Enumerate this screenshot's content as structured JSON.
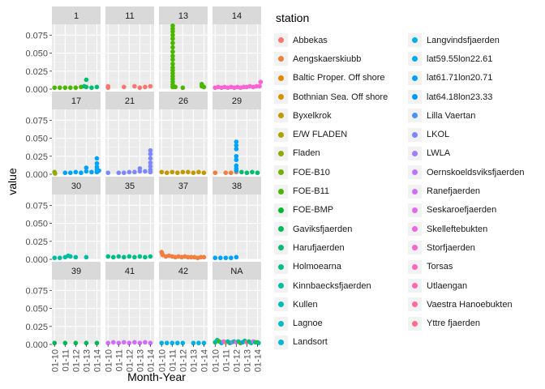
{
  "chart_data": {
    "type": "scatter",
    "xlabel": "Month-Year",
    "ylabel": "value",
    "x_ticks": [
      "01-10",
      "01-11",
      "01-12",
      "01-13",
      "01-14"
    ],
    "y_ticks": [
      "0.000",
      "0.025",
      "0.050",
      "0.075"
    ],
    "ylim": [
      0,
      0.09
    ],
    "facet_layout": "4x4 grid, legend right",
    "legend_title": "station",
    "legend_columns": [
      [
        "Abbekas",
        "Aengskaerskiubb",
        "Baltic Proper. Off shore",
        "Bothnian Sea. Off shore",
        "Byxelkrok",
        "E/W FLADEN",
        "Fladen",
        "FOE-B10",
        "FOE-B11",
        "FOE-BMP",
        "Gaviksfjaerden",
        "Harufjaerden",
        "Holmoearna",
        "Kinnbaecksfjaerden",
        "Kullen",
        "Lagnoe",
        "Landsort"
      ],
      [
        "Langvindsfjaerden",
        "lat59.55lon22.61",
        "lat61.71lon20.71",
        "lat64.18lon23.33",
        "Lilla Vaertan",
        "LKOL",
        "LWLA",
        "Oernskoeldsviksfjaerden",
        "Ranefjaerden",
        "Seskaroefjaerden",
        "Skelleftebukten",
        "Storfjaerden",
        "Torsas",
        "Utlaengan",
        "Vaestra Hanoebukten",
        "Yttre fjaerden"
      ]
    ],
    "legend_colors": [
      [
        "#F8766D",
        "#F07F40",
        "#E48800",
        "#D49100",
        "#C19A00",
        "#ABA300",
        "#92AA00",
        "#72B000",
        "#4BB600",
        "#00B92D",
        "#00BC55",
        "#00BD72",
        "#00BE8A",
        "#00BEA0",
        "#00BDB4",
        "#00BBC6",
        "#00B7D7"
      ],
      [
        "#00B2E5",
        "#00ABF1",
        "#00A3FB",
        "#009AFF",
        "#4990FF",
        "#7C86FF",
        "#A07CFF",
        "#BC74FF",
        "#D26DF9",
        "#E36AEE",
        "#F066E1",
        "#FA64D2",
        "#FE65C1",
        "#FF66B0",
        "#FF699E",
        "#FF6C8B"
      ]
    ],
    "facets": [
      {
        "label": "1",
        "points": [
          [
            0,
            0.002,
            "#4BB600"
          ],
          [
            0.5,
            0.002,
            "#4BB600"
          ],
          [
            1,
            0.002,
            "#4BB600"
          ],
          [
            1.5,
            0.002,
            "#4BB600"
          ],
          [
            2,
            0.002,
            "#4BB600"
          ],
          [
            2.5,
            0.003,
            "#4BB600"
          ],
          [
            2.8,
            0.004,
            "#00BD72"
          ],
          [
            3.0,
            0.013,
            "#00BD72"
          ],
          [
            3.0,
            0.003,
            "#00BD72"
          ],
          [
            3.5,
            0.002,
            "#00BD72"
          ],
          [
            4.0,
            0.003,
            "#00BD72"
          ]
        ]
      },
      {
        "label": "11",
        "points": [
          [
            0,
            0.004,
            "#F8766D"
          ],
          [
            0,
            0.002,
            "#F8766D"
          ],
          [
            1.5,
            0.003,
            "#F8766D"
          ],
          [
            2.5,
            0.004,
            "#F8766D"
          ],
          [
            3.0,
            0.002,
            "#F8766D"
          ],
          [
            3.5,
            0.003,
            "#F8766D"
          ],
          [
            4.0,
            0.004,
            "#F8766D"
          ]
        ]
      },
      {
        "label": "13",
        "points": [
          [
            1.05,
            0.088,
            "#4BB600"
          ],
          [
            1.05,
            0.084,
            "#4BB600"
          ],
          [
            1.05,
            0.08,
            "#4BB600"
          ],
          [
            1.05,
            0.075,
            "#4BB600"
          ],
          [
            1.05,
            0.07,
            "#4BB600"
          ],
          [
            1.05,
            0.064,
            "#4BB600"
          ],
          [
            1.05,
            0.058,
            "#4BB600"
          ],
          [
            1.05,
            0.052,
            "#4BB600"
          ],
          [
            1.05,
            0.046,
            "#4BB600"
          ],
          [
            1.05,
            0.041,
            "#4BB600"
          ],
          [
            1.05,
            0.035,
            "#4BB600"
          ],
          [
            1.05,
            0.03,
            "#4BB600"
          ],
          [
            1.05,
            0.026,
            "#4BB600"
          ],
          [
            1.05,
            0.022,
            "#4BB600"
          ],
          [
            1.05,
            0.018,
            "#4BB600"
          ],
          [
            1.05,
            0.014,
            "#4BB600"
          ],
          [
            1.05,
            0.01,
            "#4BB600"
          ],
          [
            1.05,
            0.006,
            "#4BB600"
          ],
          [
            1.05,
            0.003,
            "#4BB600"
          ],
          [
            1.3,
            0.003,
            "#4BB600"
          ],
          [
            2.0,
            0.002,
            "#4BB600"
          ],
          [
            3.8,
            0.007,
            "#4BB600"
          ],
          [
            3.8,
            0.004,
            "#4BB600"
          ],
          [
            4.0,
            0.003,
            "#4BB600"
          ]
        ]
      },
      {
        "label": "14",
        "points": [
          [
            0,
            0.002,
            "#FA64D2"
          ],
          [
            0.3,
            0.003,
            "#FA64D2"
          ],
          [
            0.6,
            0.002,
            "#FA64D2"
          ],
          [
            0.9,
            0.003,
            "#FA64D2"
          ],
          [
            1.2,
            0.002,
            "#FA64D2"
          ],
          [
            1.5,
            0.003,
            "#FA64D2"
          ],
          [
            1.8,
            0.002,
            "#FA64D2"
          ],
          [
            2.1,
            0.003,
            "#FA64D2"
          ],
          [
            2.4,
            0.002,
            "#FA64D2"
          ],
          [
            2.7,
            0.003,
            "#FA64D2"
          ],
          [
            3.0,
            0.003,
            "#FA64D2"
          ],
          [
            3.3,
            0.004,
            "#FA64D2"
          ],
          [
            3.6,
            0.003,
            "#FA64D2"
          ],
          [
            3.9,
            0.004,
            "#FA64D2"
          ],
          [
            4.2,
            0.004,
            "#FA64D2"
          ],
          [
            4.3,
            0.01,
            "#FA64D2"
          ]
        ]
      },
      {
        "label": "17",
        "points": [
          [
            0,
            0.003,
            "#92AA00"
          ],
          [
            0.05,
            0.001,
            "#92AA00"
          ],
          [
            1.0,
            0.002,
            "#00A3FB"
          ],
          [
            1.5,
            0.002,
            "#00A3FB"
          ],
          [
            2.0,
            0.003,
            "#00A3FB"
          ],
          [
            2.5,
            0.002,
            "#00A3FB"
          ],
          [
            3.0,
            0.004,
            "#00A3FB"
          ],
          [
            3.0,
            0.009,
            "#00A3FB"
          ],
          [
            3.5,
            0.003,
            "#00A3FB"
          ],
          [
            4.0,
            0.022,
            "#00A3FB"
          ],
          [
            4.0,
            0.015,
            "#00A3FB"
          ],
          [
            4.0,
            0.01,
            "#00A3FB"
          ],
          [
            4.0,
            0.006,
            "#00A3FB"
          ],
          [
            4.0,
            0.003,
            "#00A3FB"
          ],
          [
            4.2,
            0.005,
            "#00A3FB"
          ]
        ]
      },
      {
        "label": "21",
        "points": [
          [
            0,
            0.002,
            "#7C86FF"
          ],
          [
            1.0,
            0.002,
            "#7C86FF"
          ],
          [
            1.5,
            0.002,
            "#7C86FF"
          ],
          [
            2.0,
            0.003,
            "#7C86FF"
          ],
          [
            2.5,
            0.003,
            "#7C86FF"
          ],
          [
            3.0,
            0.004,
            "#7C86FF"
          ],
          [
            3.0,
            0.008,
            "#7C86FF"
          ],
          [
            3.5,
            0.004,
            "#7C86FF"
          ],
          [
            4.0,
            0.033,
            "#7C86FF"
          ],
          [
            4.0,
            0.028,
            "#7C86FF"
          ],
          [
            4.0,
            0.022,
            "#7C86FF"
          ],
          [
            4.0,
            0.016,
            "#7C86FF"
          ],
          [
            4.0,
            0.011,
            "#7C86FF"
          ],
          [
            4.0,
            0.006,
            "#7C86FF"
          ],
          [
            4.0,
            0.003,
            "#7C86FF"
          ]
        ]
      },
      {
        "label": "26",
        "points": [
          [
            0,
            0.003,
            "#C19A00"
          ],
          [
            0.5,
            0.002,
            "#C19A00"
          ],
          [
            1.0,
            0.003,
            "#C19A00"
          ],
          [
            1.5,
            0.002,
            "#C19A00"
          ],
          [
            2.0,
            0.003,
            "#C19A00"
          ],
          [
            2.5,
            0.003,
            "#C19A00"
          ],
          [
            3.0,
            0.002,
            "#C19A00"
          ],
          [
            3.5,
            0.003,
            "#C19A00"
          ],
          [
            4.0,
            0.002,
            "#C19A00"
          ]
        ]
      },
      {
        "label": "29",
        "points": [
          [
            0,
            0.002,
            "#F07F40"
          ],
          [
            1.0,
            0.002,
            "#F07F40"
          ],
          [
            1.5,
            0.002,
            "#F07F40"
          ],
          [
            2.0,
            0.003,
            "#F07F40"
          ],
          [
            2.0,
            0.045,
            "#00A3FB"
          ],
          [
            2.0,
            0.04,
            "#00A3FB"
          ],
          [
            2.0,
            0.035,
            "#00A3FB"
          ],
          [
            2.0,
            0.025,
            "#00A3FB"
          ],
          [
            2.0,
            0.02,
            "#00A3FB"
          ],
          [
            2.0,
            0.012,
            "#00A3FB"
          ],
          [
            2.0,
            0.008,
            "#00A3FB"
          ],
          [
            2.0,
            0.005,
            "#00A3FB"
          ],
          [
            2.5,
            0.003,
            "#00BD72"
          ],
          [
            3.0,
            0.002,
            "#00BD72"
          ],
          [
            3.5,
            0.003,
            "#00BD72"
          ],
          [
            4.0,
            0.002,
            "#00BD72"
          ]
        ]
      },
      {
        "label": "30",
        "points": [
          [
            0,
            0.002,
            "#00BEA0"
          ],
          [
            0.5,
            0.002,
            "#00BEA0"
          ],
          [
            1.0,
            0.003,
            "#00BEA0"
          ],
          [
            1.3,
            0.005,
            "#00BEA0"
          ],
          [
            1.5,
            0.004,
            "#00BEA0"
          ],
          [
            2.0,
            0.003,
            "#00BEA0"
          ],
          [
            3.0,
            0.003,
            "#00BEA0"
          ]
        ]
      },
      {
        "label": "35",
        "points": [
          [
            0,
            0.004,
            "#00BE8A"
          ],
          [
            0.5,
            0.003,
            "#00BE8A"
          ],
          [
            1.0,
            0.004,
            "#00BE8A"
          ],
          [
            1.5,
            0.003,
            "#00BE8A"
          ],
          [
            2.0,
            0.004,
            "#00BE8A"
          ],
          [
            2.5,
            0.003,
            "#00BE8A"
          ],
          [
            3.0,
            0.004,
            "#00BE8A"
          ],
          [
            3.5,
            0.003,
            "#00BE8A"
          ],
          [
            4.0,
            0.004,
            "#00BE8A"
          ]
        ]
      },
      {
        "label": "37",
        "points": [
          [
            0,
            0.01,
            "#F07F40"
          ],
          [
            0.05,
            0.008,
            "#F07F40"
          ],
          [
            0.1,
            0.006,
            "#F07F40"
          ],
          [
            0.4,
            0.004,
            "#F07F40"
          ],
          [
            0.7,
            0.005,
            "#F07F40"
          ],
          [
            1.0,
            0.004,
            "#F07F40"
          ],
          [
            1.3,
            0.003,
            "#F07F40"
          ],
          [
            1.6,
            0.004,
            "#F07F40"
          ],
          [
            1.9,
            0.003,
            "#F07F40"
          ],
          [
            2.2,
            0.004,
            "#F07F40"
          ],
          [
            2.5,
            0.003,
            "#F07F40"
          ],
          [
            2.8,
            0.003,
            "#F07F40"
          ],
          [
            3.1,
            0.003,
            "#F07F40"
          ],
          [
            3.4,
            0.002,
            "#F07F40"
          ],
          [
            3.7,
            0.003,
            "#F07F40"
          ],
          [
            4.0,
            0.003,
            "#F07F40"
          ]
        ]
      },
      {
        "label": "38",
        "points": [
          [
            0,
            0.002,
            "#00A3FB"
          ],
          [
            0.5,
            0.002,
            "#00A3FB"
          ],
          [
            1.0,
            0.002,
            "#00A3FB"
          ],
          [
            1.5,
            0.002,
            "#00A3FB"
          ],
          [
            2.0,
            0.003,
            "#00A3FB"
          ]
        ]
      },
      {
        "label": "39",
        "points": [
          [
            0,
            0.002,
            "#00BC55"
          ],
          [
            1.0,
            0.002,
            "#00BC55"
          ],
          [
            2.0,
            0.002,
            "#00BC55"
          ],
          [
            3.0,
            0.002,
            "#00BC55"
          ],
          [
            4.0,
            0.002,
            "#00BC55"
          ]
        ]
      },
      {
        "label": "41",
        "points": [
          [
            0,
            0.002,
            "#D26DF9"
          ],
          [
            0.5,
            0.003,
            "#D26DF9"
          ],
          [
            1.0,
            0.002,
            "#D26DF9"
          ],
          [
            1.5,
            0.003,
            "#D26DF9"
          ],
          [
            2.0,
            0.002,
            "#D26DF9"
          ],
          [
            2.5,
            0.003,
            "#D26DF9"
          ],
          [
            3.0,
            0.002,
            "#D26DF9"
          ],
          [
            3.5,
            0.003,
            "#D26DF9"
          ],
          [
            4.0,
            0.002,
            "#D26DF9"
          ]
        ]
      },
      {
        "label": "42",
        "points": [
          [
            0,
            0.002,
            "#00B2E5"
          ],
          [
            0.5,
            0.002,
            "#00B2E5"
          ],
          [
            1.0,
            0.002,
            "#00B2E5"
          ],
          [
            1.5,
            0.002,
            "#00B2E5"
          ],
          [
            2.0,
            0.002,
            "#00B2E5"
          ],
          [
            3.0,
            0.002,
            "#00B2E5"
          ],
          [
            3.5,
            0.002,
            "#00B2E5"
          ],
          [
            4.0,
            0.002,
            "#00B2E5"
          ]
        ]
      },
      {
        "label": "NA",
        "points": [
          [
            0,
            0.003,
            "#00BE8A"
          ],
          [
            0.2,
            0.006,
            "#00BEA0"
          ],
          [
            0.4,
            0.004,
            "#4BB600"
          ],
          [
            0.6,
            0.002,
            "#00B2E5"
          ],
          [
            0.8,
            0.004,
            "#D26DF9"
          ],
          [
            1.0,
            0.003,
            "#F8766D"
          ],
          [
            1.2,
            0.004,
            "#00BEA0"
          ],
          [
            1.4,
            0.002,
            "#00BD72"
          ],
          [
            1.6,
            0.003,
            "#7C86FF"
          ],
          [
            1.8,
            0.004,
            "#00BE8A"
          ],
          [
            2.0,
            0.003,
            "#F066E1"
          ],
          [
            2.2,
            0.004,
            "#00BEA0"
          ],
          [
            2.4,
            0.002,
            "#4BB600"
          ],
          [
            2.6,
            0.003,
            "#00A3FB"
          ],
          [
            2.8,
            0.005,
            "#00BE8A"
          ],
          [
            3.0,
            0.003,
            "#FF6C8B"
          ],
          [
            3.2,
            0.004,
            "#00BD72"
          ],
          [
            3.4,
            0.002,
            "#00BEA0"
          ],
          [
            3.6,
            0.004,
            "#D26DF9"
          ],
          [
            3.8,
            0.003,
            "#00BE8A"
          ],
          [
            4.0,
            0.003,
            "#4BB600"
          ],
          [
            4.1,
            0.002,
            "#00BEA0"
          ]
        ]
      }
    ]
  }
}
